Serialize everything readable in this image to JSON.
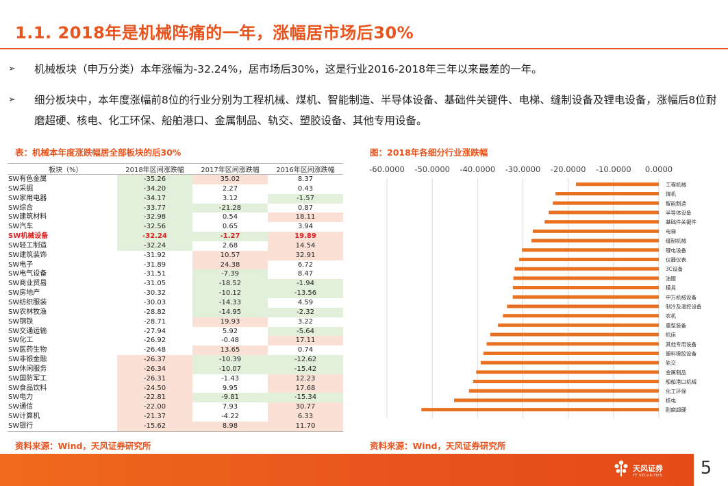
{
  "title": "1.1. 2018年是机械阵痛的一年，涨幅居市场后30%",
  "bullets": [
    "机械板块（申万分类）本年涨幅为-32.24%，居市场后30%，这是行业2016-2018年三年以来最差的一年。",
    "细分板块中，本年度涨幅前8位的行业分别为工程机械、煤机、智能制造、半导体设备、基础件关键件、电梯、缝制设备及锂电设备，涨幅后8位耐磨超硬、核电、化工环保、船舶港口、金属制品、轨交、塑胶设备、其他专用设备。"
  ],
  "table": {
    "caption": "表：机械本年度涨跌幅居全部板块的后30%",
    "headers": [
      "板块（%）",
      "2018年区间涨跌幅",
      "2017年区间涨跌幅",
      "2016年区间涨跌幅"
    ],
    "highlight_row": "SW机械设备",
    "rows": [
      [
        "SW有色金属",
        "-35.26",
        "35.02",
        "8.37"
      ],
      [
        "SW采掘",
        "-34.20",
        "2.27",
        "0.43"
      ],
      [
        "SW家用电器",
        "-34.17",
        "3.12",
        "-1.57"
      ],
      [
        "SW综合",
        "-33.77",
        "-21.28",
        "0.87"
      ],
      [
        "SW建筑材料",
        "-32.98",
        "0.54",
        "18.11"
      ],
      [
        "SW汽车",
        "-32.56",
        "0.65",
        "3.94"
      ],
      [
        "SW机械设备",
        "-32.24",
        "-1.27",
        "19.89"
      ],
      [
        "SW轻工制造",
        "-32.24",
        "2.68",
        "14.54"
      ],
      [
        "SW建筑装饰",
        "-31.92",
        "10.57",
        "32.91"
      ],
      [
        "SW电子",
        "-31.89",
        "24.38",
        "6.72"
      ],
      [
        "SW电气设备",
        "-31.51",
        "-7.39",
        "8.47"
      ],
      [
        "SW商业贸易",
        "-31.05",
        "-18.52",
        "-1.94"
      ],
      [
        "SW房地产",
        "-30.32",
        "-10.12",
        "-13.56"
      ],
      [
        "SW纺织服装",
        "-30.03",
        "-14.33",
        "4.59"
      ],
      [
        "SW农林牧渔",
        "-28.82",
        "-14.95",
        "-2.32"
      ],
      [
        "SW钢铁",
        "-28.71",
        "19.93",
        "3.22"
      ],
      [
        "SW交通运输",
        "-27.94",
        "5.92",
        "-5.64"
      ],
      [
        "SW化工",
        "-26.92",
        "-0.48",
        "17.11"
      ],
      [
        "SW医药生物",
        "-26.48",
        "13.65",
        "0.74"
      ],
      [
        "SW非银金融",
        "-26.37",
        "-10.39",
        "-12.62"
      ],
      [
        "SW休闲服务",
        "-26.34",
        "-10.07",
        "-15.42"
      ],
      [
        "SW国防军工",
        "-26.31",
        "-1.43",
        "12.23"
      ],
      [
        "SW食品饮料",
        "-24.50",
        "9.95",
        "17.68"
      ],
      [
        "SW电力",
        "-22.81",
        "-9.81",
        "-15.34"
      ],
      [
        "SW通信",
        "-22.00",
        "7.93",
        "30.77"
      ],
      [
        "SW计算机",
        "-21.37",
        "-4.22",
        "6.33"
      ],
      [
        "SW银行",
        "-15.62",
        "8.98",
        "11.70"
      ]
    ],
    "cell_colors": {
      "green": "#e2efda",
      "red": "#fbe0d6"
    },
    "cell_shading": [
      [
        "g",
        "r",
        "n"
      ],
      [
        "g",
        "n",
        "n"
      ],
      [
        "g",
        "n",
        "g"
      ],
      [
        "g",
        "g",
        "n"
      ],
      [
        "g",
        "n",
        "r"
      ],
      [
        "g",
        "n",
        "n"
      ],
      [
        "g",
        "g",
        "r"
      ],
      [
        "g",
        "n",
        "r"
      ],
      [
        "n",
        "r",
        "r"
      ],
      [
        "n",
        "r",
        "n"
      ],
      [
        "n",
        "g",
        "n"
      ],
      [
        "n",
        "g",
        "g"
      ],
      [
        "n",
        "g",
        "g"
      ],
      [
        "n",
        "g",
        "n"
      ],
      [
        "n",
        "g",
        "g"
      ],
      [
        "n",
        "r",
        "n"
      ],
      [
        "n",
        "n",
        "g"
      ],
      [
        "n",
        "n",
        "r"
      ],
      [
        "n",
        "r",
        "n"
      ],
      [
        "r",
        "g",
        "g"
      ],
      [
        "r",
        "g",
        "g"
      ],
      [
        "r",
        "n",
        "r"
      ],
      [
        "r",
        "n",
        "r"
      ],
      [
        "r",
        "g",
        "g"
      ],
      [
        "r",
        "n",
        "r"
      ],
      [
        "r",
        "n",
        "r"
      ],
      [
        "r",
        "r",
        "r"
      ]
    ],
    "source": "资料来源：Wind，天风证券研究所"
  },
  "chart_caption": "图：2018年各细分行业涨跌幅",
  "chart_source": "资料来源：Wind，天风证券研究所",
  "chart_data": {
    "type": "bar",
    "orientation": "horizontal",
    "categories": [
      "工程机械",
      "煤机",
      "智能制造",
      "半导体设备",
      "基础件关键件",
      "电梯",
      "缝制机械",
      "锂电设备",
      "仪器仪表",
      "3C设备",
      "油服",
      "模具",
      "申万机械设备",
      "制冷及温控设备",
      "农机",
      "重型装备",
      "机床",
      "其他专用设备",
      "塑料橡胶设备",
      "轨交",
      "金属制品",
      "船舶港口机械",
      "化工环保",
      "核电",
      "耐磨超硬"
    ],
    "values": [
      -18.3,
      -22.8,
      -23.4,
      -24.3,
      -25.2,
      -27.8,
      -28.1,
      -30.2,
      -30.8,
      -31.8,
      -32.1,
      -32.2,
      -32.24,
      -33.5,
      -34.4,
      -35.5,
      -37.2,
      -38.0,
      -38.7,
      -39.3,
      -40.3,
      -41.0,
      -41.9,
      -45.2,
      -52.4
    ],
    "xlim": [
      -60,
      0
    ],
    "xticks": [
      "-60.0000",
      "-50.0000",
      "-40.0000",
      "-30.0000",
      "-20.0000",
      "-10.0000",
      "0.0000"
    ],
    "axis_position": "top",
    "bar_color": "#e8701f",
    "grid": true
  },
  "footer": {
    "brand": "天风证券",
    "brand_sub": "TF SECURITIES",
    "page_number": "5",
    "bar_color": "#e8541d"
  }
}
